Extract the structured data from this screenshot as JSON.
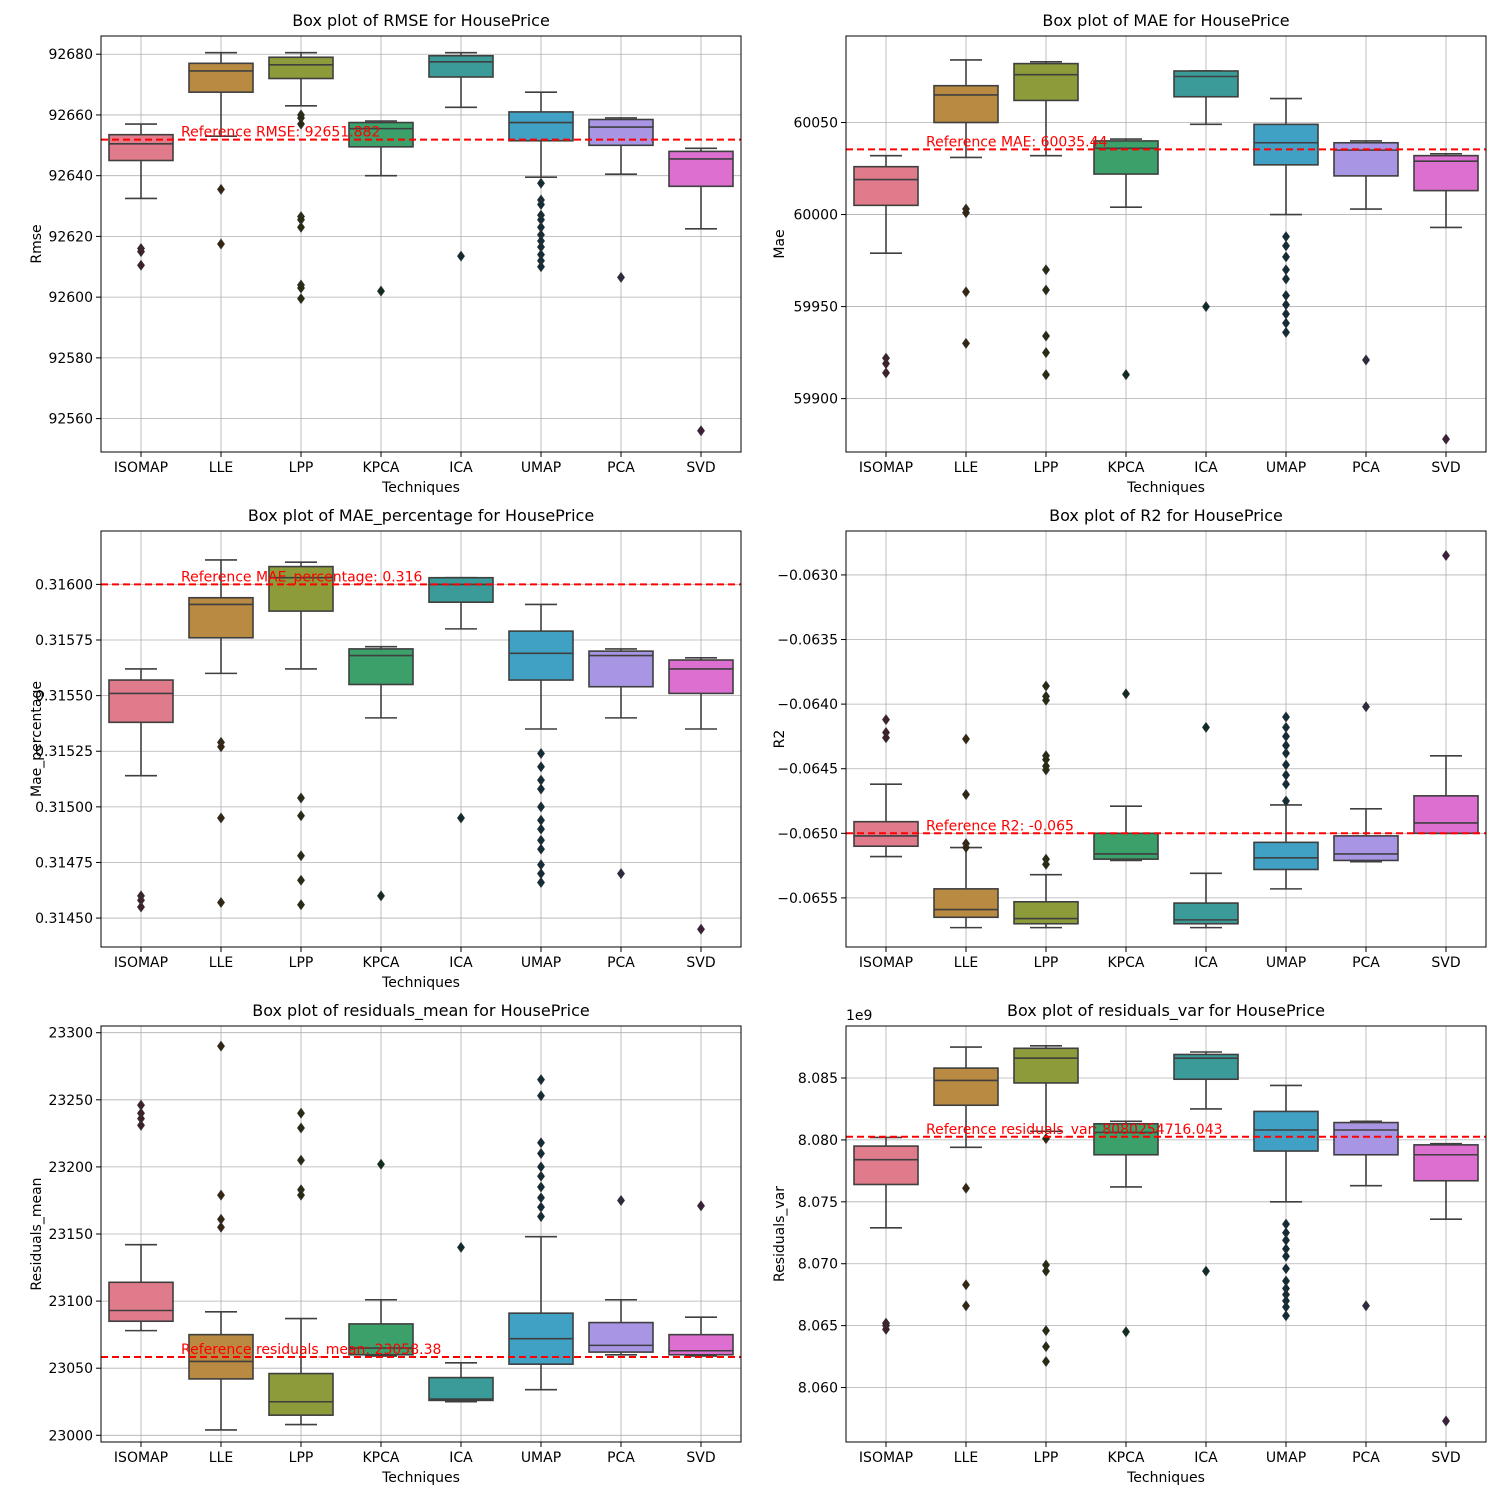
{
  "figure": {
    "background": "#ffffff"
  },
  "palette": [
    "#e07b8c",
    "#b98a42",
    "#8e9b3a",
    "#3ba06a",
    "#3a9b99",
    "#41a1c4",
    "#a896e4",
    "#dc6fd0"
  ],
  "chart_data": [
    {
      "type": "box",
      "title": "Box plot of RMSE for HousePrice",
      "xlabel": "Techniques",
      "ylabel": "Rmse",
      "categories": [
        "ISOMAP",
        "LLE",
        "LPP",
        "KPCA",
        "ICA",
        "UMAP",
        "PCA",
        "SVD"
      ],
      "ylim": [
        92549,
        92686
      ],
      "yticks": [
        92560,
        92580,
        92600,
        92620,
        92640,
        92660,
        92680
      ],
      "ytick_labels": [
        "92560",
        "92580",
        "92600",
        "92620",
        "92640",
        "92660",
        "92680"
      ],
      "grid": true,
      "boxes": [
        {
          "whisker_low": 92632.5,
          "q1": 92645,
          "median": 92650.5,
          "q3": 92653.5,
          "whisker_high": 92657,
          "outliers": [
            92616,
            92615,
            92610.5
          ]
        },
        {
          "whisker_low": 92653,
          "q1": 92667.5,
          "median": 92674.5,
          "q3": 92677,
          "whisker_high": 92680.5,
          "outliers": [
            92635.5,
            92617.5
          ]
        },
        {
          "whisker_low": 92663,
          "q1": 92672,
          "median": 92676.5,
          "q3": 92679,
          "whisker_high": 92680.5,
          "outliers": [
            92660,
            92659,
            92657,
            92626.5,
            92625.5,
            92623,
            92604,
            92603,
            92599.5
          ]
        },
        {
          "whisker_low": 92640,
          "q1": 92649.5,
          "median": 92655.5,
          "q3": 92657.5,
          "whisker_high": 92658,
          "outliers": [
            92602
          ]
        },
        {
          "whisker_low": 92662.5,
          "q1": 92672.5,
          "median": 92677.5,
          "q3": 92679.5,
          "whisker_high": 92680.5,
          "outliers": [
            92613.5
          ]
        },
        {
          "whisker_low": 92639.5,
          "q1": 92651.5,
          "median": 92657.5,
          "q3": 92661,
          "whisker_high": 92667.5,
          "outliers": [
            92637.5,
            92632,
            92630.5,
            92627,
            92625.5,
            92623,
            92620.5,
            92618.5,
            92616.5,
            92614,
            92612,
            92610
          ]
        },
        {
          "whisker_low": 92640.5,
          "q1": 92650,
          "median": 92656,
          "q3": 92658.5,
          "whisker_high": 92659,
          "outliers": [
            92606.5
          ]
        },
        {
          "whisker_low": 92622.5,
          "q1": 92636.5,
          "median": 92645.5,
          "q3": 92648,
          "whisker_high": 92649,
          "outliers": [
            92556
          ]
        }
      ],
      "reference": {
        "value": 92651.882,
        "label": "Reference RMSE: 92651.882"
      }
    },
    {
      "type": "box",
      "title": "Box plot of MAE for HousePrice",
      "xlabel": "Techniques",
      "ylabel": "Mae",
      "categories": [
        "ISOMAP",
        "LLE",
        "LPP",
        "KPCA",
        "ICA",
        "UMAP",
        "PCA",
        "SVD"
      ],
      "ylim": [
        59871,
        60097
      ],
      "yticks": [
        59900,
        59950,
        60000,
        60050
      ],
      "ytick_labels": [
        "59900",
        "59950",
        "60000",
        "60050"
      ],
      "grid": true,
      "boxes": [
        {
          "whisker_low": 59979,
          "q1": 60005,
          "median": 60019,
          "q3": 60026,
          "whisker_high": 60032,
          "outliers": [
            59922,
            59919,
            59914
          ]
        },
        {
          "whisker_low": 60031,
          "q1": 60050,
          "median": 60065,
          "q3": 60070,
          "whisker_high": 60084,
          "outliers": [
            60003,
            60001,
            59958,
            59930
          ]
        },
        {
          "whisker_low": 60032,
          "q1": 60062,
          "median": 60076,
          "q3": 60082,
          "whisker_high": 60083,
          "outliers": [
            59970,
            59959,
            59934,
            59925,
            59913
          ]
        },
        {
          "whisker_low": 60004,
          "q1": 60022,
          "median": 60036,
          "q3": 60040,
          "whisker_high": 60041,
          "outliers": [
            59913
          ]
        },
        {
          "whisker_low": 60049,
          "q1": 60064,
          "median": 60075,
          "q3": 60078,
          "whisker_high": 60078,
          "outliers": [
            59950
          ]
        },
        {
          "whisker_low": 60000,
          "q1": 60027,
          "median": 60039,
          "q3": 60049,
          "whisker_high": 60063,
          "outliers": [
            59988,
            59983,
            59977,
            59970,
            59965,
            59956,
            59951,
            59946,
            59941,
            59936
          ]
        },
        {
          "whisker_low": 60003,
          "q1": 60021,
          "median": 60035,
          "q3": 60039,
          "whisker_high": 60040,
          "outliers": [
            59921
          ]
        },
        {
          "whisker_low": 59993,
          "q1": 60013,
          "median": 60029,
          "q3": 60032,
          "whisker_high": 60033,
          "outliers": [
            59878
          ]
        }
      ],
      "reference": {
        "value": 60035.44,
        "label": "Reference MAE: 60035.44"
      }
    },
    {
      "type": "box",
      "title": "Box plot of MAE_percentage for HousePrice",
      "xlabel": "Techniques",
      "ylabel": "Mae_percentage",
      "categories": [
        "ISOMAP",
        "LLE",
        "LPP",
        "KPCA",
        "ICA",
        "UMAP",
        "PCA",
        "SVD"
      ],
      "ylim": [
        0.31437,
        0.31624
      ],
      "yticks": [
        0.3145,
        0.31475,
        0.315,
        0.31525,
        0.3155,
        0.31575,
        0.316
      ],
      "ytick_labels": [
        "0.31450",
        "0.31475",
        "0.31500",
        "0.31525",
        "0.31550",
        "0.31575",
        "0.31600"
      ],
      "grid": true,
      "boxes": [
        {
          "whisker_low": 0.31514,
          "q1": 0.31538,
          "median": 0.31551,
          "q3": 0.31557,
          "whisker_high": 0.31562,
          "outliers": [
            0.3146,
            0.31458,
            0.31455
          ]
        },
        {
          "whisker_low": 0.3156,
          "q1": 0.31576,
          "median": 0.31591,
          "q3": 0.31594,
          "whisker_high": 0.31611,
          "outliers": [
            0.31529,
            0.31527,
            0.31495,
            0.31457
          ]
        },
        {
          "whisker_low": 0.31562,
          "q1": 0.31588,
          "median": 0.31603,
          "q3": 0.31608,
          "whisker_high": 0.3161,
          "outliers": [
            0.31504,
            0.31496,
            0.31478,
            0.31467,
            0.31456
          ]
        },
        {
          "whisker_low": 0.3154,
          "q1": 0.31555,
          "median": 0.31568,
          "q3": 0.31571,
          "whisker_high": 0.31572,
          "outliers": [
            0.3146
          ]
        },
        {
          "whisker_low": 0.3158,
          "q1": 0.31592,
          "median": 0.316,
          "q3": 0.31603,
          "whisker_high": 0.31603,
          "outliers": [
            0.31495
          ]
        },
        {
          "whisker_low": 0.31535,
          "q1": 0.31557,
          "median": 0.31569,
          "q3": 0.31579,
          "whisker_high": 0.31591,
          "outliers": [
            0.31524,
            0.31518,
            0.31512,
            0.31508,
            0.315,
            0.31494,
            0.3149,
            0.31485,
            0.31481,
            0.31474,
            0.3147,
            0.31466
          ]
        },
        {
          "whisker_low": 0.3154,
          "q1": 0.31554,
          "median": 0.31568,
          "q3": 0.3157,
          "whisker_high": 0.31571,
          "outliers": [
            0.3147
          ]
        },
        {
          "whisker_low": 0.31535,
          "q1": 0.31551,
          "median": 0.31562,
          "q3": 0.31566,
          "whisker_high": 0.31567,
          "outliers": [
            0.31445
          ]
        }
      ],
      "reference": {
        "value": 0.316,
        "label": "Reference MAE_percentage: 0.316"
      }
    },
    {
      "type": "box",
      "title": "Box plot of R2 for HousePrice",
      "xlabel": "",
      "ylabel": "R2",
      "categories": [
        "ISOMAP",
        "LLE",
        "LPP",
        "KPCA",
        "ICA",
        "UMAP",
        "PCA",
        "SVD"
      ],
      "ylim": [
        -0.06588,
        -0.06266
      ],
      "yticks": [
        -0.0655,
        -0.065,
        -0.0645,
        -0.064,
        -0.0635,
        -0.063
      ],
      "ytick_labels": [
        "−0.0655",
        "−0.0650",
        "−0.0645",
        "−0.0640",
        "−0.0635",
        "−0.0630"
      ],
      "grid": true,
      "boxes": [
        {
          "whisker_low": -0.06518,
          "q1": -0.0651,
          "median": -0.06502,
          "q3": -0.06491,
          "whisker_high": -0.06462,
          "outliers": [
            -0.06412,
            -0.06422,
            -0.06426
          ]
        },
        {
          "whisker_low": -0.06573,
          "q1": -0.06565,
          "median": -0.06559,
          "q3": -0.06543,
          "whisker_high": -0.06511,
          "outliers": [
            -0.06427,
            -0.0647,
            -0.06508,
            -0.06511
          ]
        },
        {
          "whisker_low": -0.06573,
          "q1": -0.0657,
          "median": -0.06566,
          "q3": -0.06553,
          "whisker_high": -0.06532,
          "outliers": [
            -0.06386,
            -0.06394,
            -0.06397,
            -0.0644,
            -0.06443,
            -0.06448,
            -0.06451,
            -0.0652,
            -0.06524
          ]
        },
        {
          "whisker_low": -0.06521,
          "q1": -0.0652,
          "median": -0.06516,
          "q3": -0.065,
          "whisker_high": -0.06479,
          "outliers": [
            -0.06392
          ]
        },
        {
          "whisker_low": -0.06573,
          "q1": -0.0657,
          "median": -0.06567,
          "q3": -0.06554,
          "whisker_high": -0.06531,
          "outliers": [
            -0.06418
          ]
        },
        {
          "whisker_low": -0.06543,
          "q1": -0.06528,
          "median": -0.06519,
          "q3": -0.06507,
          "whisker_high": -0.06478,
          "outliers": [
            -0.06475,
            -0.06462,
            -0.06455,
            -0.06447,
            -0.06438,
            -0.06432,
            -0.06425,
            -0.06418,
            -0.0641
          ]
        },
        {
          "whisker_low": -0.06522,
          "q1": -0.06521,
          "median": -0.06516,
          "q3": -0.06502,
          "whisker_high": -0.06481,
          "outliers": [
            -0.06402
          ]
        },
        {
          "whisker_low": -0.065,
          "q1": -0.065,
          "median": -0.06492,
          "q3": -0.06471,
          "whisker_high": -0.0644,
          "outliers": [
            -0.06285
          ]
        }
      ],
      "reference": {
        "value": -0.065,
        "label": "Reference R2: -0.065"
      }
    },
    {
      "type": "box",
      "title": "Box plot of residuals_mean for HousePrice",
      "xlabel": "Techniques",
      "ylabel": "Residuals_mean",
      "categories": [
        "ISOMAP",
        "LLE",
        "LPP",
        "KPCA",
        "ICA",
        "UMAP",
        "PCA",
        "SVD"
      ],
      "ylim": [
        22995,
        23305
      ],
      "yticks": [
        23000,
        23050,
        23100,
        23150,
        23200,
        23250,
        23300
      ],
      "ytick_labels": [
        "23000",
        "23050",
        "23100",
        "23150",
        "23200",
        "23250",
        "23300"
      ],
      "grid": true,
      "boxes": [
        {
          "whisker_low": 23078,
          "q1": 23085,
          "median": 23093,
          "q3": 23114,
          "whisker_high": 23142,
          "outliers": [
            23246,
            23240,
            23236,
            23231
          ]
        },
        {
          "whisker_low": 23004,
          "q1": 23042,
          "median": 23055,
          "q3": 23075,
          "whisker_high": 23092,
          "outliers": [
            23290,
            23179,
            23161,
            23155
          ]
        },
        {
          "whisker_low": 23008,
          "q1": 23015,
          "median": 23025,
          "q3": 23046,
          "whisker_high": 23087,
          "outliers": [
            23240,
            23229,
            23205,
            23183,
            23179
          ]
        },
        {
          "whisker_low": 23059,
          "q1": 23060,
          "median": 23065,
          "q3": 23083,
          "whisker_high": 23101,
          "outliers": [
            23202
          ]
        },
        {
          "whisker_low": 23025,
          "q1": 23026,
          "median": 23027,
          "q3": 23043,
          "whisker_high": 23054,
          "outliers": [
            23140
          ]
        },
        {
          "whisker_low": 23034,
          "q1": 23053,
          "median": 23072,
          "q3": 23091,
          "whisker_high": 23148,
          "outliers": [
            23265,
            23253,
            23218,
            23210,
            23200,
            23193,
            23185,
            23177,
            23170,
            23163
          ]
        },
        {
          "whisker_low": 23060,
          "q1": 23062,
          "median": 23067,
          "q3": 23084,
          "whisker_high": 23101,
          "outliers": [
            23175
          ]
        },
        {
          "whisker_low": 23059,
          "q1": 23060,
          "median": 23063,
          "q3": 23075,
          "whisker_high": 23088,
          "outliers": [
            23171
          ]
        }
      ],
      "reference": {
        "value": 23058.38,
        "label": "Reference residuals_mean: 23058.38"
      }
    },
    {
      "type": "box",
      "title": "Box plot of residuals_var for HousePrice",
      "xlabel": "Techniques",
      "ylabel": "Residuals_var",
      "offset_text": "1e9",
      "categories": [
        "ISOMAP",
        "LLE",
        "LPP",
        "KPCA",
        "ICA",
        "UMAP",
        "PCA",
        "SVD"
      ],
      "ylim": [
        8.0556,
        8.0892
      ],
      "yticks": [
        8.06,
        8.065,
        8.07,
        8.075,
        8.08,
        8.085
      ],
      "ytick_labels": [
        "8.060",
        "8.065",
        "8.070",
        "8.075",
        "8.080",
        "8.085"
      ],
      "grid": true,
      "boxes": [
        {
          "whisker_low": 8.0729,
          "q1": 8.0764,
          "median": 8.0784,
          "q3": 8.0795,
          "whisker_high": 8.0802,
          "outliers": [
            8.0652,
            8.065,
            8.0647
          ]
        },
        {
          "whisker_low": 8.0794,
          "q1": 8.0828,
          "median": 8.0848,
          "q3": 8.0858,
          "whisker_high": 8.0875,
          "outliers": [
            8.0761,
            8.0683,
            8.0666
          ]
        },
        {
          "whisker_low": 8.0807,
          "q1": 8.0846,
          "median": 8.0866,
          "q3": 8.0874,
          "whisker_high": 8.0876,
          "outliers": [
            8.0801,
            8.0699,
            8.0694,
            8.0646,
            8.0633,
            8.0621
          ]
        },
        {
          "whisker_low": 8.0762,
          "q1": 8.0788,
          "median": 8.0806,
          "q3": 8.0813,
          "whisker_high": 8.0815,
          "outliers": [
            8.0645
          ]
        },
        {
          "whisker_low": 8.0825,
          "q1": 8.0849,
          "median": 8.0866,
          "q3": 8.0869,
          "whisker_high": 8.0871,
          "outliers": [
            8.0694
          ]
        },
        {
          "whisker_low": 8.075,
          "q1": 8.0791,
          "median": 8.0808,
          "q3": 8.0823,
          "whisker_high": 8.0844,
          "outliers": [
            8.0732,
            8.0725,
            8.0719,
            8.0712,
            8.0706,
            8.0696,
            8.0686,
            8.068,
            8.0675,
            8.067,
            8.0665,
            8.0658
          ]
        },
        {
          "whisker_low": 8.0763,
          "q1": 8.0788,
          "median": 8.0808,
          "q3": 8.0814,
          "whisker_high": 8.0815,
          "outliers": [
            8.0666
          ]
        },
        {
          "whisker_low": 8.0736,
          "q1": 8.0767,
          "median": 8.0788,
          "q3": 8.0796,
          "whisker_high": 8.0797,
          "outliers": [
            8.0573
          ]
        }
      ],
      "reference": {
        "value": 8.080254716043,
        "label": "Reference residuals_var: 8080254716.043"
      }
    }
  ]
}
